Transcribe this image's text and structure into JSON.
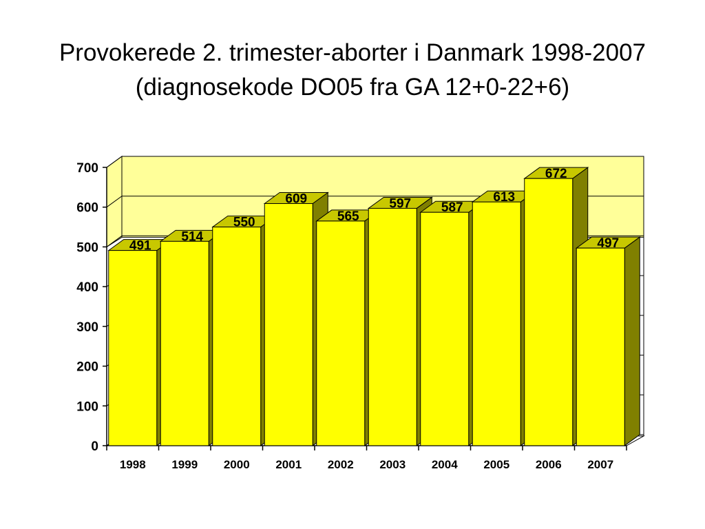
{
  "slide": {
    "title": "Provokerede 2. trimester-aborter i Danmark 1998-2007 (diagnosekode DO05 fra GA 12+0-22+6)"
  },
  "chart_data": {
    "type": "bar",
    "title": "Provokerede 2. trimester-aborter i Danmark 1998-2007 (diagnosekode DO05 fra GA 12+0-22+6)",
    "xlabel": "",
    "ylabel": "",
    "categories": [
      "1998",
      "1999",
      "2000",
      "2001",
      "2002",
      "2003",
      "2004",
      "2005",
      "2006",
      "2007"
    ],
    "values": [
      491,
      514,
      550,
      609,
      565,
      597,
      587,
      613,
      672,
      497
    ],
    "data_labels": [
      "491",
      "514",
      "550",
      "609",
      "565",
      "597",
      "587",
      "613",
      "672",
      "497"
    ],
    "ylim": [
      0,
      700
    ],
    "yticks": [
      0,
      100,
      200,
      300,
      400,
      500,
      600,
      700
    ],
    "ytick_labels": [
      "0",
      "100",
      "200",
      "300",
      "400",
      "500",
      "600",
      "700"
    ],
    "grid": true,
    "legend": "none",
    "style": "3d-bar",
    "colors": {
      "bar_front": "#ffff00",
      "bar_top": "#c8c800",
      "bar_side": "#808000",
      "back_wall": "#ffff99",
      "floor": "#ffff99",
      "outline": "#000000"
    }
  }
}
